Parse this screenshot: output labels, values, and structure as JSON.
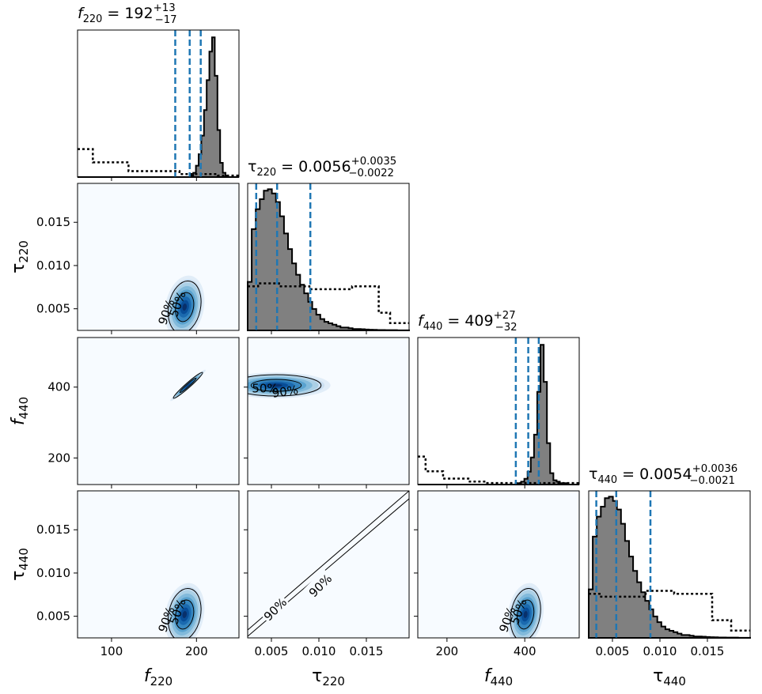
{
  "chart_data": {
    "type": "corner",
    "parameters": [
      {
        "key": "f220",
        "symbol": "f",
        "sub": "220",
        "italic": true,
        "range": [
          60,
          250
        ],
        "ticks": [
          100,
          200
        ],
        "tick_labels": [
          "100",
          "200"
        ],
        "median": 192,
        "plus": "+13",
        "minus": "−17",
        "low": 175,
        "high": 205
      },
      {
        "key": "tau220",
        "symbol": "τ",
        "sub": "220",
        "italic": false,
        "range": [
          0.0025,
          0.0195
        ],
        "ticks": [
          0.005,
          0.01,
          0.015
        ],
        "tick_labels": [
          "0.005",
          "0.010",
          "0.015"
        ],
        "median": 0.0056,
        "plus": "+0.0035",
        "minus": "−0.0022",
        "low": 0.0034,
        "high": 0.0091
      },
      {
        "key": "f440",
        "symbol": "f",
        "sub": "440",
        "italic": true,
        "range": [
          125,
          540
        ],
        "ticks": [
          200,
          400
        ],
        "tick_labels": [
          "200",
          "400"
        ],
        "median": 409,
        "plus": "+27",
        "minus": "−32",
        "low": 377,
        "high": 436
      },
      {
        "key": "tau440",
        "symbol": "τ",
        "sub": "440",
        "italic": false,
        "range": [
          0.0025,
          0.0195
        ],
        "ticks": [
          0.005,
          0.01,
          0.015
        ],
        "tick_labels": [
          "0.005",
          "0.010",
          "0.015"
        ],
        "median": 0.0054,
        "plus": "+0.0036",
        "minus": "−0.0021",
        "low": 0.0033,
        "high": 0.009
      }
    ],
    "diagonal": [
      {
        "bin_values": [
          0,
          0,
          0,
          0,
          0,
          0,
          0,
          0,
          0,
          0,
          0,
          0,
          0,
          0,
          0,
          0,
          0,
          0,
          0,
          0,
          0,
          0,
          0,
          0,
          0,
          0,
          0,
          0,
          0,
          0,
          0,
          0,
          0,
          0,
          0,
          0,
          0,
          0,
          0,
          0,
          0,
          0,
          0.01,
          0.03,
          0.08,
          0.16,
          0.29,
          0.47,
          0.68,
          0.88,
          0.98,
          0.71,
          0.33,
          0.1,
          0.03,
          0.01,
          0,
          0,
          0,
          0
        ],
        "prior": [
          [
            60,
            0.19
          ],
          [
            78,
            0.19
          ],
          [
            78,
            0.1
          ],
          [
            120,
            0.1
          ],
          [
            120,
            0.04
          ],
          [
            180,
            0.04
          ],
          [
            180,
            0.02
          ],
          [
            225,
            0.02
          ],
          [
            225,
            0.01
          ],
          [
            250,
            0.01
          ]
        ]
      },
      {
        "bin_values": [
          0.34,
          0.71,
          0.85,
          0.92,
          0.98,
          0.99,
          0.96,
          0.9,
          0.8,
          0.68,
          0.57,
          0.47,
          0.39,
          0.32,
          0.26,
          0.2,
          0.15,
          0.11,
          0.08,
          0.06,
          0.05,
          0.04,
          0.03,
          0.02,
          0.02,
          0.015,
          0.01,
          0.01,
          0.008,
          0.006,
          0.005,
          0.004,
          0.003,
          0.003,
          0.002,
          0.002,
          0.002,
          0.001,
          0.001,
          0.001
        ],
        "prior": [
          [
            0.0025,
            0.3
          ],
          [
            0.0036,
            0.3
          ],
          [
            0.0036,
            0.32
          ],
          [
            0.0058,
            0.32
          ],
          [
            0.0058,
            0.3
          ],
          [
            0.009,
            0.3
          ],
          [
            0.009,
            0.28
          ],
          [
            0.0135,
            0.28
          ],
          [
            0.0135,
            0.3
          ],
          [
            0.0163,
            0.3
          ],
          [
            0.0163,
            0.12
          ],
          [
            0.0175,
            0.12
          ],
          [
            0.0175,
            0.05
          ],
          [
            0.0195,
            0.05
          ]
        ]
      },
      {
        "bin_values": [
          0,
          0,
          0,
          0,
          0,
          0,
          0,
          0,
          0,
          0,
          0,
          0,
          0,
          0,
          0,
          0,
          0,
          0,
          0,
          0,
          0,
          0,
          0,
          0,
          0,
          0,
          0,
          0,
          0,
          0,
          0,
          0.01,
          0.02,
          0.04,
          0.09,
          0.19,
          0.35,
          0.65,
          0.98,
          0.72,
          0.29,
          0.08,
          0.03,
          0.02,
          0.01,
          0.01,
          0,
          0,
          0,
          0
        ],
        "prior": [
          [
            125,
            0.19
          ],
          [
            145,
            0.19
          ],
          [
            145,
            0.09
          ],
          [
            190,
            0.09
          ],
          [
            190,
            0.04
          ],
          [
            255,
            0.04
          ],
          [
            255,
            0.02
          ],
          [
            300,
            0.02
          ],
          [
            300,
            0.01
          ],
          [
            540,
            0.01
          ]
        ]
      },
      {
        "bin_values": [
          0.34,
          0.71,
          0.85,
          0.92,
          0.98,
          0.99,
          0.96,
          0.9,
          0.8,
          0.68,
          0.57,
          0.47,
          0.39,
          0.32,
          0.26,
          0.2,
          0.15,
          0.11,
          0.08,
          0.06,
          0.05,
          0.04,
          0.03,
          0.02,
          0.02,
          0.015,
          0.01,
          0.01,
          0.008,
          0.006,
          0.005,
          0.004,
          0.003,
          0.003,
          0.002,
          0.002,
          0.002,
          0.001,
          0.001,
          0.001
        ],
        "prior": [
          [
            0.0025,
            0.3
          ],
          [
            0.0038,
            0.3
          ],
          [
            0.0038,
            0.28
          ],
          [
            0.0085,
            0.28
          ],
          [
            0.0085,
            0.32
          ],
          [
            0.0115,
            0.32
          ],
          [
            0.0115,
            0.3
          ],
          [
            0.0155,
            0.3
          ],
          [
            0.0155,
            0.12
          ],
          [
            0.0175,
            0.12
          ],
          [
            0.0175,
            0.05
          ],
          [
            0.0195,
            0.05
          ]
        ]
      }
    ],
    "pairs": [
      {
        "row": 1,
        "col": 0,
        "kind": "blob",
        "center": [
          186,
          0.0052
        ],
        "sigma": [
          9,
          0.0014
        ],
        "rho": 0.2,
        "contour_labels": [
          "90%",
          "50%"
        ]
      },
      {
        "row": 2,
        "col": 0,
        "kind": "blob",
        "center": [
          190,
          405
        ],
        "sigma": [
          8,
          17
        ],
        "rho": 0.97,
        "contour_labels": []
      },
      {
        "row": 2,
        "col": 1,
        "kind": "blob",
        "center": [
          0.0055,
          405
        ],
        "sigma": [
          0.0022,
          14
        ],
        "rho": 0,
        "contour_labels": [
          "50%",
          "90%"
        ]
      },
      {
        "row": 3,
        "col": 0,
        "kind": "blob",
        "center": [
          186,
          0.0052
        ],
        "sigma": [
          9,
          0.0014
        ],
        "rho": 0.2,
        "contour_labels": [
          "90%",
          "50%"
        ]
      },
      {
        "row": 3,
        "col": 1,
        "kind": "band",
        "contour_labels": [
          "90%",
          "90%"
        ]
      },
      {
        "row": 3,
        "col": 2,
        "kind": "blob",
        "center": [
          402,
          0.0052
        ],
        "sigma": [
          18,
          0.0014
        ],
        "rho": 0.2,
        "contour_labels": [
          "90%",
          "50%"
        ]
      }
    ],
    "quantile_color": "#1f77b4",
    "hist_fill": "#808080",
    "colormap": [
      "#f7fbff",
      "#deebf7",
      "#c6dbef",
      "#9ecae1",
      "#6baed6",
      "#4292c6",
      "#2171b5",
      "#08519c",
      "#08306b"
    ]
  }
}
